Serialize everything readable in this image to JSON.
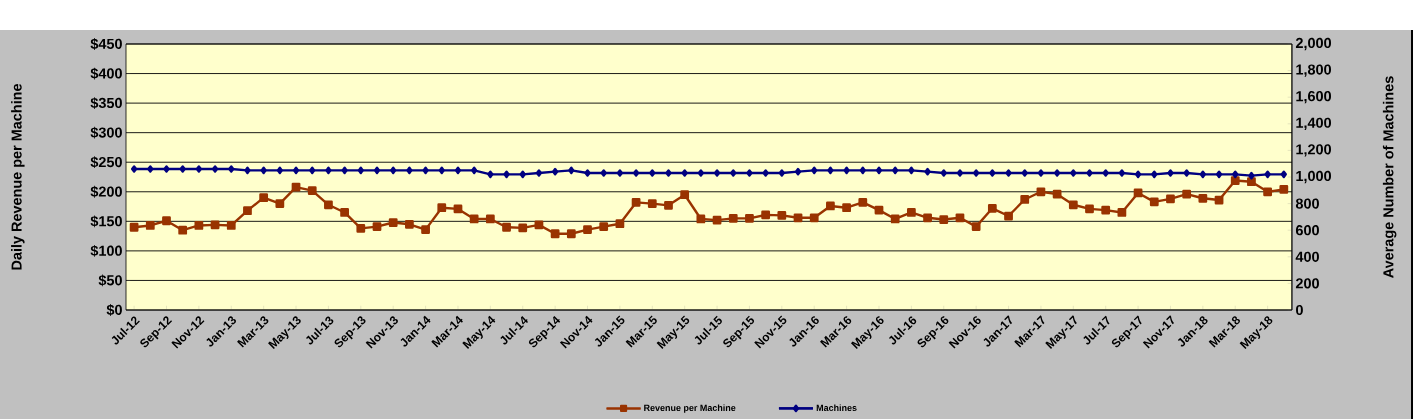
{
  "chart_data": {
    "type": "line",
    "categories": [
      "Jul-12",
      null,
      "Sep-12",
      null,
      "Nov-12",
      null,
      "Jan-13",
      null,
      "Mar-13",
      null,
      "May-13",
      null,
      "Jul-13",
      null,
      "Sep-13",
      null,
      "Nov-13",
      null,
      "Jan-14",
      null,
      "Mar-14",
      null,
      "May-14",
      null,
      "Jul-14",
      null,
      "Sep-14",
      null,
      "Nov-14",
      null,
      "Jan-15",
      null,
      "Mar-15",
      null,
      "May-15",
      null,
      "Jul-15",
      null,
      "Sep-15",
      null,
      "Nov-15",
      null,
      "Jan-16",
      null,
      "Mar-16",
      null,
      "May-16",
      null,
      "Jul-16",
      null,
      "Sep-16",
      null,
      "Nov-16",
      null,
      "Jan-17",
      null,
      "Mar-17",
      null,
      "May-17",
      null,
      "Jul-17",
      null,
      "Sep-17",
      null,
      "Nov-17",
      null,
      "Jan-18",
      null,
      "Mar-18",
      null,
      "May-18",
      null
    ],
    "series": [
      {
        "name": "Revenue per Machine",
        "color": "#993300",
        "marker": "square",
        "values": [
          140,
          143,
          151,
          135,
          143,
          144,
          143,
          168,
          190,
          180,
          208,
          202,
          178,
          165,
          138,
          141,
          148,
          145,
          136,
          173,
          171,
          154,
          154,
          140,
          139,
          144,
          129,
          129,
          136,
          141,
          146,
          182,
          180,
          177,
          195,
          154,
          152,
          155,
          155,
          161,
          160,
          156,
          156,
          176,
          173,
          182,
          169,
          154,
          165,
          156,
          153,
          156,
          141,
          172,
          159,
          187,
          200,
          196,
          178,
          171,
          169,
          165,
          198,
          183,
          188,
          196,
          189,
          186,
          219,
          217,
          200,
          204
        ]
      },
      {
        "name": "Machines",
        "color": "#000080",
        "marker": "diamond",
        "axis": "y2",
        "values": [
          1060,
          1060,
          1060,
          1060,
          1060,
          1060,
          1060,
          1050,
          1050,
          1050,
          1050,
          1050,
          1050,
          1050,
          1050,
          1050,
          1050,
          1050,
          1050,
          1050,
          1050,
          1050,
          1020,
          1020,
          1020,
          1030,
          1040,
          1050,
          1030,
          1030,
          1030,
          1030,
          1030,
          1030,
          1030,
          1030,
          1030,
          1030,
          1030,
          1030,
          1030,
          1040,
          1050,
          1050,
          1050,
          1050,
          1050,
          1050,
          1050,
          1040,
          1030,
          1030,
          1030,
          1030,
          1030,
          1030,
          1030,
          1030,
          1030,
          1030,
          1030,
          1030,
          1020,
          1020,
          1030,
          1030,
          1020,
          1020,
          1020,
          1010,
          1020,
          1020
        ]
      }
    ],
    "ylabel": "Daily Revenue per Machine",
    "y2label": "Average Number of Machines",
    "ylim": [
      0,
      450
    ],
    "yticks": [
      {
        "value": 0,
        "label": "$0"
      },
      {
        "value": 50,
        "label": "$50"
      },
      {
        "value": 100,
        "label": "$100"
      },
      {
        "value": 150,
        "label": "$150"
      },
      {
        "value": 200,
        "label": "$200"
      },
      {
        "value": 250,
        "label": "$250"
      },
      {
        "value": 300,
        "label": "$300"
      },
      {
        "value": 350,
        "label": "$350"
      },
      {
        "value": 400,
        "label": "$400"
      },
      {
        "value": 450,
        "label": "$450"
      }
    ],
    "y2lim": [
      0,
      2000
    ],
    "y2ticks": [
      0,
      200,
      400,
      600,
      800,
      {
        "value": 1000,
        "label": "1,000"
      },
      {
        "value": 1200,
        "label": "1,200"
      },
      {
        "value": 1400,
        "label": "1,400"
      },
      {
        "value": 1600,
        "label": "1,600"
      },
      {
        "value": 1800,
        "label": "1,800"
      },
      {
        "value": 2000,
        "label": "2,000"
      }
    ],
    "grid": "y",
    "legend": "bottom",
    "line_style": "solid"
  }
}
